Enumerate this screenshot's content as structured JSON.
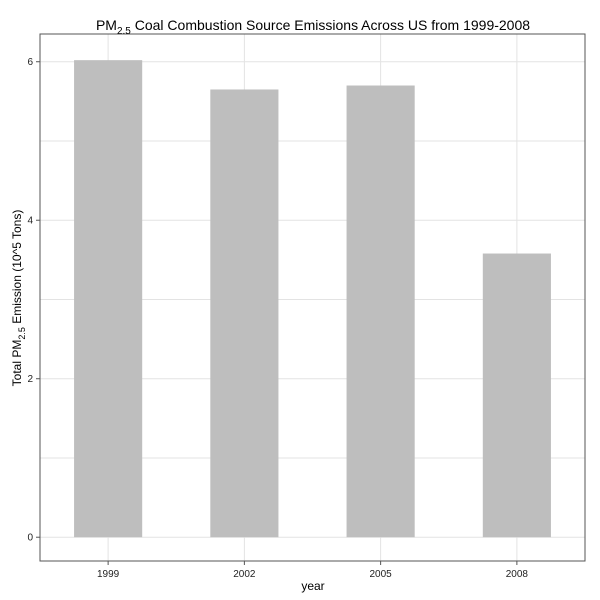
{
  "chart_data": {
    "type": "bar",
    "title": {
      "pre": "PM",
      "sub": "2.5",
      "post": " Coal Combustion Source Emissions Across US from 1999-2008"
    },
    "xlabel": "year",
    "ylabel": {
      "pre": "Total PM",
      "sub": "2.5",
      "post": " Emission (10^5 Tons)"
    },
    "categories": [
      "1999",
      "2002",
      "2005",
      "2008"
    ],
    "values": [
      6.02,
      5.65,
      5.7,
      3.58
    ],
    "ylim": [
      -0.3,
      6.35
    ],
    "yticks": [
      0,
      2,
      4,
      6
    ],
    "grid": true,
    "bar_color": "#bebebe",
    "legend": "none"
  }
}
